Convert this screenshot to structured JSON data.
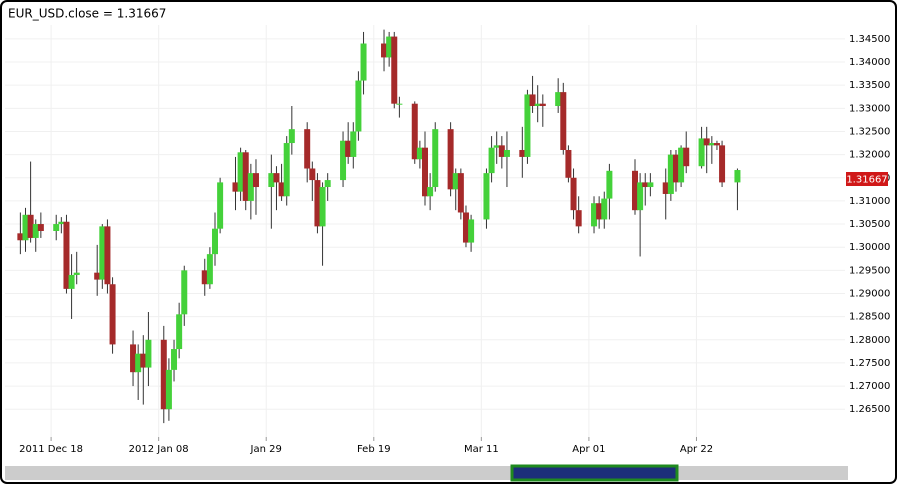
{
  "chart_data": {
    "type": "candlestick",
    "title": "EUR_USD.close = 1.31667",
    "x": [
      "2011-12-12",
      "2011-12-13",
      "2011-12-14",
      "2011-12-15",
      "2011-12-16",
      "2011-12-19",
      "2011-12-20",
      "2011-12-21",
      "2011-12-22",
      "2011-12-23",
      "2011-12-27",
      "2011-12-28",
      "2011-12-29",
      "2011-12-30",
      "2012-01-03",
      "2012-01-04",
      "2012-01-05",
      "2012-01-06",
      "2012-01-09",
      "2012-01-10",
      "2012-01-11",
      "2012-01-12",
      "2012-01-13",
      "2012-01-17",
      "2012-01-18",
      "2012-01-19",
      "2012-01-20",
      "2012-01-23",
      "2012-01-24",
      "2012-01-25",
      "2012-01-26",
      "2012-01-27",
      "2012-01-30",
      "2012-01-31",
      "2012-02-01",
      "2012-02-02",
      "2012-02-03",
      "2012-02-06",
      "2012-02-07",
      "2012-02-08",
      "2012-02-09",
      "2012-02-10",
      "2012-02-13",
      "2012-02-14",
      "2012-02-15",
      "2012-02-16",
      "2012-02-17",
      "2012-02-21",
      "2012-02-22",
      "2012-02-23",
      "2012-02-24",
      "2012-02-27",
      "2012-02-28",
      "2012-02-29",
      "2012-03-01",
      "2012-03-02",
      "2012-03-05",
      "2012-03-06",
      "2012-03-07",
      "2012-03-08",
      "2012-03-09",
      "2012-03-12",
      "2012-03-13",
      "2012-03-14",
      "2012-03-15",
      "2012-03-16",
      "2012-03-19",
      "2012-03-20",
      "2012-03-21",
      "2012-03-22",
      "2012-03-23",
      "2012-03-26",
      "2012-03-27",
      "2012-03-28",
      "2012-03-29",
      "2012-03-30",
      "2012-04-02",
      "2012-04-03",
      "2012-04-04",
      "2012-04-05",
      "2012-04-10",
      "2012-04-11",
      "2012-04-12",
      "2012-04-13",
      "2012-04-16",
      "2012-04-17",
      "2012-04-18",
      "2012-04-19",
      "2012-04-20",
      "2012-04-23",
      "2012-04-24",
      "2012-04-25",
      "2012-04-26",
      "2012-04-27",
      "2012-04-30"
    ],
    "open": [
      1.303,
      1.3015,
      1.307,
      1.302,
      1.305,
      1.3035,
      1.305,
      1.3055,
      1.291,
      1.294,
      1.2945,
      1.293,
      1.3045,
      1.292,
      1.279,
      1.273,
      1.277,
      1.274,
      1.28,
      1.265,
      1.2735,
      1.278,
      1.2855,
      1.295,
      1.292,
      1.2985,
      1.304,
      1.314,
      1.312,
      1.3205,
      1.31,
      1.316,
      1.313,
      1.316,
      1.314,
      1.311,
      1.3225,
      1.3255,
      1.317,
      1.3145,
      1.3045,
      1.313,
      1.3145,
      1.323,
      1.3195,
      1.325,
      1.336,
      1.344,
      1.341,
      1.3455,
      1.331,
      1.331,
      1.319,
      1.3215,
      1.311,
      1.313,
      1.3255,
      1.3125,
      1.316,
      1.3075,
      1.301,
      1.306,
      1.316,
      1.3215,
      1.322,
      1.3195,
      1.321,
      1.3195,
      1.333,
      1.3305,
      1.331,
      1.3305,
      1.3335,
      1.321,
      1.315,
      1.308,
      1.3045,
      1.3095,
      1.306,
      1.3105,
      1.3165,
      1.308,
      1.314,
      1.313,
      1.314,
      1.3115,
      1.32,
      1.314,
      1.3215,
      1.3175,
      1.3235,
      1.322,
      1.3225,
      1.322,
      1.314
    ],
    "high": [
      1.3075,
      1.3085,
      1.3185,
      1.306,
      1.3075,
      1.307,
      1.3065,
      1.307,
      1.2985,
      1.299,
      1.3005,
      1.305,
      1.306,
      1.2935,
      1.282,
      1.279,
      1.281,
      1.286,
      1.283,
      1.276,
      1.28,
      1.288,
      1.296,
      1.2975,
      1.3,
      1.3075,
      1.315,
      1.3195,
      1.3215,
      1.321,
      1.318,
      1.319,
      1.32,
      1.3175,
      1.318,
      1.324,
      1.3305,
      1.327,
      1.3185,
      1.316,
      1.314,
      1.316,
      1.325,
      1.327,
      1.327,
      1.338,
      1.3465,
      1.347,
      1.3465,
      1.3465,
      1.3325,
      1.3315,
      1.323,
      1.325,
      1.316,
      1.327,
      1.327,
      1.317,
      1.317,
      1.309,
      1.307,
      1.317,
      1.324,
      1.325,
      1.324,
      1.325,
      1.326,
      1.334,
      1.337,
      1.335,
      1.333,
      1.3365,
      1.3355,
      1.322,
      1.317,
      1.311,
      1.311,
      1.311,
      1.312,
      1.318,
      1.319,
      1.316,
      1.316,
      1.316,
      1.317,
      1.321,
      1.321,
      1.322,
      1.325,
      1.326,
      1.326,
      1.324,
      1.323,
      1.323,
      1.317
    ],
    "low": [
      1.2985,
      1.299,
      1.301,
      1.299,
      1.302,
      1.3015,
      1.303,
      1.29,
      1.2845,
      1.292,
      1.2895,
      1.291,
      1.29,
      1.277,
      1.27,
      1.267,
      1.266,
      1.27,
      1.262,
      1.2625,
      1.271,
      1.276,
      1.283,
      1.2895,
      1.291,
      1.296,
      1.303,
      1.308,
      1.31,
      1.308,
      1.306,
      1.307,
      1.304,
      1.308,
      1.31,
      1.309,
      1.32,
      1.314,
      1.31,
      1.303,
      1.296,
      1.31,
      1.313,
      1.318,
      1.317,
      1.323,
      1.333,
      1.338,
      1.339,
      1.33,
      1.328,
      1.318,
      1.317,
      1.309,
      1.308,
      1.312,
      1.311,
      1.308,
      1.306,
      1.3,
      1.299,
      1.304,
      1.314,
      1.318,
      1.317,
      1.313,
      1.315,
      1.318,
      1.329,
      1.327,
      1.326,
      1.329,
      1.32,
      1.314,
      1.306,
      1.303,
      1.303,
      1.304,
      1.304,
      1.306,
      1.307,
      1.298,
      1.309,
      1.311,
      1.306,
      1.31,
      1.312,
      1.313,
      1.316,
      1.317,
      1.316,
      1.318,
      1.321,
      1.313,
      1.308
    ],
    "close": [
      1.3015,
      1.307,
      1.302,
      1.305,
      1.3035,
      1.305,
      1.3055,
      1.291,
      1.294,
      1.2945,
      1.293,
      1.3045,
      1.292,
      1.279,
      1.273,
      1.277,
      1.274,
      1.28,
      1.265,
      1.2735,
      1.278,
      1.2855,
      1.295,
      1.292,
      1.2985,
      1.304,
      1.314,
      1.312,
      1.3205,
      1.31,
      1.316,
      1.313,
      1.316,
      1.314,
      1.311,
      1.3225,
      1.3255,
      1.317,
      1.3145,
      1.3045,
      1.313,
      1.3145,
      1.323,
      1.3195,
      1.325,
      1.336,
      1.344,
      1.341,
      1.3455,
      1.331,
      1.331,
      1.319,
      1.3215,
      1.311,
      1.313,
      1.3255,
      1.3125,
      1.316,
      1.3075,
      1.301,
      1.306,
      1.316,
      1.3215,
      1.322,
      1.3195,
      1.321,
      1.3195,
      1.333,
      1.3305,
      1.331,
      1.3305,
      1.3335,
      1.321,
      1.315,
      1.308,
      1.3045,
      1.3095,
      1.306,
      1.3105,
      1.3165,
      1.308,
      1.314,
      1.313,
      1.314,
      1.3115,
      1.32,
      1.314,
      1.3215,
      1.3175,
      1.3235,
      1.322,
      1.3225,
      1.322,
      1.314,
      1.31667
    ],
    "up_color": "#44d13a",
    "down_color": "#a52a2a",
    "wick_color": "#333333",
    "xlim": [
      "2011-12-09",
      "2012-05-21"
    ],
    "xticks": [
      {
        "value": "2011-12-18",
        "label": "2011 Dec 18"
      },
      {
        "value": "2012-01-08",
        "label": "2012 Jan 08"
      },
      {
        "value": "2012-01-29",
        "label": "Jan 29"
      },
      {
        "value": "2012-02-19",
        "label": "Feb 19"
      },
      {
        "value": "2012-03-11",
        "label": "Mar 11"
      },
      {
        "value": "2012-04-01",
        "label": "Apr 01"
      },
      {
        "value": "2012-04-22",
        "label": "Apr 22"
      }
    ],
    "ylim": [
      1.259,
      1.348
    ],
    "yticks": [
      {
        "value": 1.265,
        "label": "1.26500"
      },
      {
        "value": 1.27,
        "label": "1.27000"
      },
      {
        "value": 1.275,
        "label": "1.27500"
      },
      {
        "value": 1.28,
        "label": "1.28000"
      },
      {
        "value": 1.285,
        "label": "1.28500"
      },
      {
        "value": 1.29,
        "label": "1.29000"
      },
      {
        "value": 1.295,
        "label": "1.29500"
      },
      {
        "value": 1.3,
        "label": "1.30000"
      },
      {
        "value": 1.305,
        "label": "1.30500"
      },
      {
        "value": 1.31,
        "label": "1.31000"
      },
      {
        "value": 1.315,
        "label": "1.31500"
      },
      {
        "value": 1.32,
        "label": "1.32000"
      },
      {
        "value": 1.325,
        "label": "1.32500"
      },
      {
        "value": 1.33,
        "label": "1.33000"
      },
      {
        "value": 1.335,
        "label": "1.33500"
      },
      {
        "value": 1.34,
        "label": "1.34000"
      },
      {
        "value": 1.345,
        "label": "1.34500"
      }
    ],
    "grid": true
  }
}
